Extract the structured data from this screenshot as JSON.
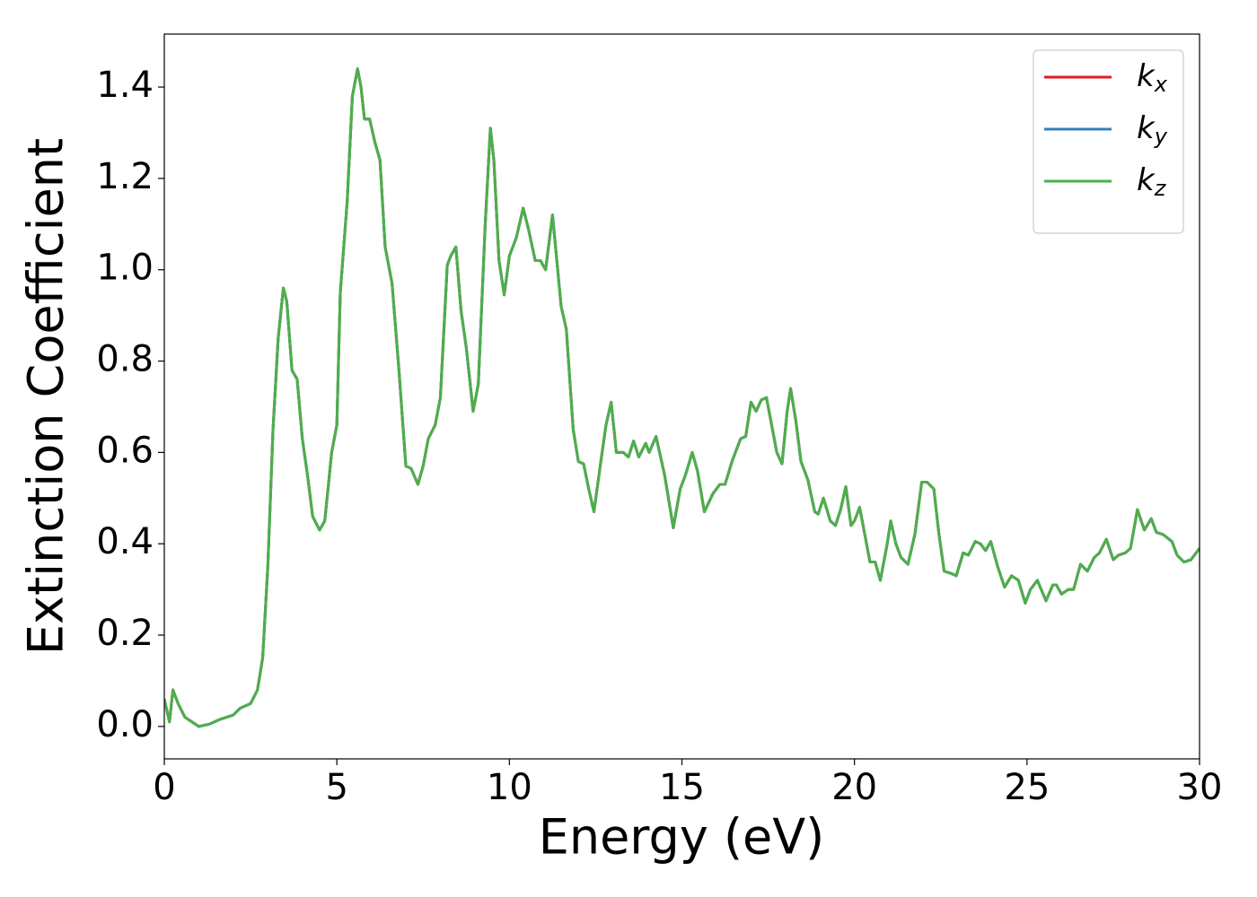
{
  "chart_data": {
    "type": "line",
    "xlabel": "Energy (eV)",
    "ylabel": "Extinction Coefficient",
    "xlim": [
      0,
      30
    ],
    "xticks": [
      0,
      5,
      10,
      15,
      20,
      25,
      30
    ],
    "ylim": [
      -0.071,
      1.516
    ],
    "yticks": [
      {
        "value": 0,
        "label": "0.0"
      },
      0.2,
      0.4,
      0.6,
      0.8,
      {
        "value": 1,
        "label": "1.0"
      },
      1.2,
      1.4
    ],
    "legend": "upper right",
    "x": [
      0,
      0.15,
      0.25,
      0.4,
      0.6,
      0.8,
      1.0,
      1.3,
      1.6,
      2.0,
      2.2,
      2.5,
      2.7,
      2.85,
      3.0,
      3.15,
      3.3,
      3.45,
      3.55,
      3.7,
      3.85,
      4.0,
      4.15,
      4.3,
      4.5,
      4.65,
      4.85,
      5.0,
      5.1,
      5.3,
      5.45,
      5.6,
      5.7,
      5.8,
      5.95,
      6.1,
      6.25,
      6.4,
      6.6,
      6.8,
      7.0,
      7.15,
      7.35,
      7.5,
      7.65,
      7.85,
      8.0,
      8.2,
      8.3,
      8.45,
      8.6,
      8.75,
      8.95,
      9.1,
      9.3,
      9.45,
      9.55,
      9.7,
      9.85,
      10.0,
      10.2,
      10.4,
      10.55,
      10.75,
      10.9,
      11.05,
      11.25,
      11.4,
      11.5,
      11.65,
      11.85,
      12.0,
      12.15,
      12.3,
      12.45,
      12.65,
      12.8,
      12.95,
      13.1,
      13.3,
      13.45,
      13.6,
      13.75,
      13.95,
      14.05,
      14.25,
      14.5,
      14.75,
      14.95,
      15.1,
      15.3,
      15.45,
      15.65,
      15.9,
      16.1,
      16.25,
      16.45,
      16.7,
      16.85,
      17.0,
      17.15,
      17.3,
      17.45,
      17.6,
      17.75,
      17.9,
      18.05,
      18.15,
      18.3,
      18.45,
      18.65,
      18.85,
      18.95,
      19.1,
      19.3,
      19.45,
      19.6,
      19.75,
      19.9,
      20.0,
      20.15,
      20.3,
      20.45,
      20.6,
      20.75,
      20.95,
      21.05,
      21.2,
      21.35,
      21.55,
      21.75,
      21.95,
      22.1,
      22.3,
      22.45,
      22.6,
      22.8,
      22.95,
      23.15,
      23.3,
      23.5,
      23.65,
      23.8,
      23.95,
      24.15,
      24.35,
      24.55,
      24.75,
      24.95,
      25.1,
      25.3,
      25.55,
      25.75,
      25.85,
      26.0,
      26.2,
      26.35,
      26.55,
      26.75,
      26.95,
      27.1,
      27.3,
      27.5,
      27.65,
      27.85,
      28.0,
      28.2,
      28.4,
      28.6,
      28.75,
      28.95,
      29.2,
      29.35,
      29.55,
      29.75,
      30.0
    ],
    "series": [
      {
        "name": "kx",
        "color": "#e41a1c",
        "values": [
          0.06,
          0.01,
          0.08,
          0.05,
          0.02,
          0.01,
          0.0,
          0.005,
          0.015,
          0.025,
          0.04,
          0.05,
          0.08,
          0.15,
          0.35,
          0.65,
          0.85,
          0.96,
          0.93,
          0.78,
          0.76,
          0.63,
          0.55,
          0.46,
          0.43,
          0.45,
          0.6,
          0.66,
          0.95,
          1.15,
          1.38,
          1.44,
          1.4,
          1.33,
          1.33,
          1.28,
          1.24,
          1.05,
          0.97,
          0.78,
          0.57,
          0.565,
          0.53,
          0.57,
          0.63,
          0.66,
          0.72,
          1.01,
          1.03,
          1.05,
          0.91,
          0.83,
          0.69,
          0.75,
          1.1,
          1.31,
          1.24,
          1.02,
          0.945,
          1.03,
          1.07,
          1.135,
          1.09,
          1.02,
          1.02,
          1.0,
          1.12,
          1.0,
          0.92,
          0.87,
          0.65,
          0.58,
          0.575,
          0.52,
          0.47,
          0.58,
          0.66,
          0.71,
          0.6,
          0.6,
          0.59,
          0.625,
          0.59,
          0.62,
          0.6,
          0.635,
          0.55,
          0.435,
          0.52,
          0.55,
          0.6,
          0.56,
          0.47,
          0.51,
          0.53,
          0.53,
          0.58,
          0.63,
          0.635,
          0.71,
          0.69,
          0.715,
          0.72,
          0.66,
          0.6,
          0.575,
          0.69,
          0.74,
          0.67,
          0.58,
          0.54,
          0.47,
          0.465,
          0.5,
          0.45,
          0.44,
          0.475,
          0.525,
          0.44,
          0.45,
          0.48,
          0.42,
          0.36,
          0.36,
          0.32,
          0.4,
          0.45,
          0.4,
          0.37,
          0.355,
          0.42,
          0.535,
          0.535,
          0.52,
          0.42,
          0.34,
          0.335,
          0.33,
          0.38,
          0.375,
          0.405,
          0.4,
          0.385,
          0.405,
          0.35,
          0.305,
          0.33,
          0.32,
          0.27,
          0.3,
          0.32,
          0.275,
          0.31,
          0.31,
          0.29,
          0.3,
          0.3,
          0.355,
          0.34,
          0.37,
          0.38,
          0.41,
          0.365,
          0.375,
          0.38,
          0.39,
          0.475,
          0.43,
          0.455,
          0.425,
          0.42,
          0.405,
          0.375,
          0.36,
          0.365,
          0.39
        ]
      },
      {
        "name": "ky",
        "color": "#377eb8",
        "values": [
          0.06,
          0.01,
          0.08,
          0.05,
          0.02,
          0.01,
          0.0,
          0.005,
          0.015,
          0.025,
          0.04,
          0.05,
          0.08,
          0.15,
          0.35,
          0.65,
          0.85,
          0.96,
          0.93,
          0.78,
          0.76,
          0.63,
          0.55,
          0.46,
          0.43,
          0.45,
          0.6,
          0.66,
          0.95,
          1.15,
          1.38,
          1.44,
          1.4,
          1.33,
          1.33,
          1.28,
          1.24,
          1.05,
          0.97,
          0.78,
          0.57,
          0.565,
          0.53,
          0.57,
          0.63,
          0.66,
          0.72,
          1.01,
          1.03,
          1.05,
          0.91,
          0.83,
          0.69,
          0.75,
          1.1,
          1.31,
          1.24,
          1.02,
          0.945,
          1.03,
          1.07,
          1.135,
          1.09,
          1.02,
          1.02,
          1.0,
          1.12,
          1.0,
          0.92,
          0.87,
          0.65,
          0.58,
          0.575,
          0.52,
          0.47,
          0.58,
          0.66,
          0.71,
          0.6,
          0.6,
          0.59,
          0.625,
          0.59,
          0.62,
          0.6,
          0.635,
          0.55,
          0.435,
          0.52,
          0.55,
          0.6,
          0.56,
          0.47,
          0.51,
          0.53,
          0.53,
          0.58,
          0.63,
          0.635,
          0.71,
          0.69,
          0.715,
          0.72,
          0.66,
          0.6,
          0.575,
          0.69,
          0.74,
          0.67,
          0.58,
          0.54,
          0.47,
          0.465,
          0.5,
          0.45,
          0.44,
          0.475,
          0.525,
          0.44,
          0.45,
          0.48,
          0.42,
          0.36,
          0.36,
          0.32,
          0.4,
          0.45,
          0.4,
          0.37,
          0.355,
          0.42,
          0.535,
          0.535,
          0.52,
          0.42,
          0.34,
          0.335,
          0.33,
          0.38,
          0.375,
          0.405,
          0.4,
          0.385,
          0.405,
          0.35,
          0.305,
          0.33,
          0.32,
          0.27,
          0.3,
          0.32,
          0.275,
          0.31,
          0.31,
          0.29,
          0.3,
          0.3,
          0.355,
          0.34,
          0.37,
          0.38,
          0.41,
          0.365,
          0.375,
          0.38,
          0.39,
          0.475,
          0.43,
          0.455,
          0.425,
          0.42,
          0.405,
          0.375,
          0.36,
          0.365,
          0.39
        ]
      },
      {
        "name": "kz",
        "color": "#4daf4a",
        "values": [
          0.06,
          0.01,
          0.08,
          0.05,
          0.02,
          0.01,
          0.0,
          0.005,
          0.015,
          0.025,
          0.04,
          0.05,
          0.08,
          0.15,
          0.35,
          0.65,
          0.85,
          0.96,
          0.93,
          0.78,
          0.76,
          0.63,
          0.55,
          0.46,
          0.43,
          0.45,
          0.6,
          0.66,
          0.95,
          1.15,
          1.38,
          1.44,
          1.4,
          1.33,
          1.33,
          1.28,
          1.24,
          1.05,
          0.97,
          0.78,
          0.57,
          0.565,
          0.53,
          0.57,
          0.63,
          0.66,
          0.72,
          1.01,
          1.03,
          1.05,
          0.91,
          0.83,
          0.69,
          0.75,
          1.1,
          1.31,
          1.24,
          1.02,
          0.945,
          1.03,
          1.07,
          1.135,
          1.09,
          1.02,
          1.02,
          1.0,
          1.12,
          1.0,
          0.92,
          0.87,
          0.65,
          0.58,
          0.575,
          0.52,
          0.47,
          0.58,
          0.66,
          0.71,
          0.6,
          0.6,
          0.59,
          0.625,
          0.59,
          0.62,
          0.6,
          0.635,
          0.55,
          0.435,
          0.52,
          0.55,
          0.6,
          0.56,
          0.47,
          0.51,
          0.53,
          0.53,
          0.58,
          0.63,
          0.635,
          0.71,
          0.69,
          0.715,
          0.72,
          0.66,
          0.6,
          0.575,
          0.69,
          0.74,
          0.67,
          0.58,
          0.54,
          0.47,
          0.465,
          0.5,
          0.45,
          0.44,
          0.475,
          0.525,
          0.44,
          0.45,
          0.48,
          0.42,
          0.36,
          0.36,
          0.32,
          0.4,
          0.45,
          0.4,
          0.37,
          0.355,
          0.42,
          0.535,
          0.535,
          0.52,
          0.42,
          0.34,
          0.335,
          0.33,
          0.38,
          0.375,
          0.405,
          0.4,
          0.385,
          0.405,
          0.35,
          0.305,
          0.33,
          0.32,
          0.27,
          0.3,
          0.32,
          0.275,
          0.31,
          0.31,
          0.29,
          0.3,
          0.3,
          0.355,
          0.34,
          0.37,
          0.38,
          0.41,
          0.365,
          0.375,
          0.38,
          0.39,
          0.475,
          0.43,
          0.455,
          0.425,
          0.42,
          0.405,
          0.375,
          0.36,
          0.365,
          0.39
        ]
      }
    ]
  }
}
